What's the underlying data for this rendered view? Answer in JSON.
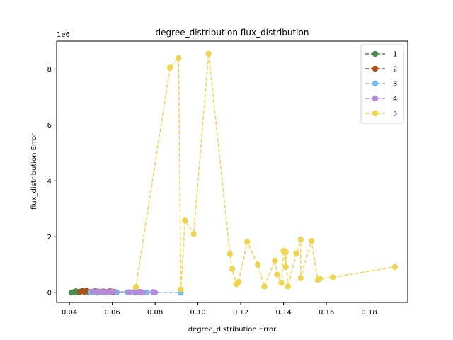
{
  "chart_data": {
    "type": "line",
    "title": "degree_distribution flux_distribution",
    "xlabel": "degree_distribution Error",
    "ylabel": "flux_distribution Error",
    "y_offset_label": "1e6",
    "xlim": [
      0.034,
      0.198
    ],
    "ylim": [
      -0.35,
      9.0
    ],
    "y_scale_factor": 1000000,
    "x_ticks": [
      0.04,
      0.06,
      0.08,
      0.1,
      0.12,
      0.14,
      0.16,
      0.18
    ],
    "x_tick_labels": [
      "0.04",
      "0.06",
      "0.08",
      "0.10",
      "0.12",
      "0.14",
      "0.16",
      "0.18"
    ],
    "y_ticks": [
      0,
      2,
      4,
      6,
      8
    ],
    "y_tick_labels": [
      "0",
      "2",
      "4",
      "6",
      "8"
    ],
    "legend_position": "top-right",
    "grid": false,
    "series": [
      {
        "name": "1",
        "color": "#4a8b50",
        "x": [
          0.041,
          0.042,
          0.043,
          0.044,
          0.045,
          0.047,
          0.049,
          0.051,
          0.053,
          0.055,
          0.057
        ],
        "y": [
          0.0,
          0.02,
          0.05,
          0.01,
          0.03,
          0.02,
          0.01,
          0.02,
          0.0,
          0.01,
          0.02
        ]
      },
      {
        "name": "2",
        "color": "#a9521b",
        "x": [
          0.045,
          0.046,
          0.047,
          0.048,
          0.05,
          0.052,
          0.054,
          0.056,
          0.058,
          0.059,
          0.06,
          0.061,
          0.062
        ],
        "y": [
          0.03,
          0.06,
          0.04,
          0.07,
          0.03,
          0.05,
          0.02,
          0.04,
          0.03,
          0.05,
          0.02,
          0.03,
          0.01
        ]
      },
      {
        "name": "3",
        "color": "#7ab8ee",
        "x": [
          0.05,
          0.052,
          0.055,
          0.058,
          0.062,
          0.067,
          0.07,
          0.073,
          0.076,
          0.092
        ],
        "y": [
          0.02,
          0.01,
          0.02,
          0.01,
          0.02,
          0.01,
          0.02,
          0.01,
          0.01,
          0.0
        ]
      },
      {
        "name": "4",
        "color": "#b58ad6",
        "x": [
          0.051,
          0.053,
          0.054,
          0.055,
          0.057,
          0.059,
          0.06,
          0.068,
          0.071,
          0.072,
          0.073,
          0.074,
          0.079,
          0.08
        ],
        "y": [
          0.03,
          0.05,
          0.02,
          0.04,
          0.03,
          0.02,
          0.04,
          0.02,
          0.01,
          0.02,
          0.03,
          0.01,
          0.02,
          0.01
        ]
      },
      {
        "name": "5",
        "color": "#efd452",
        "x": [
          0.071,
          0.087,
          0.091,
          0.092,
          0.094,
          0.098,
          0.105,
          0.115,
          0.116,
          0.118,
          0.119,
          0.123,
          0.128,
          0.131,
          0.136,
          0.137,
          0.139,
          0.14,
          0.141,
          0.141,
          0.142,
          0.146,
          0.148,
          0.148,
          0.153,
          0.156,
          0.157,
          0.163,
          0.192
        ],
        "y": [
          0.2,
          8.05,
          8.4,
          0.12,
          2.58,
          2.1,
          8.55,
          1.38,
          0.85,
          0.3,
          0.38,
          1.82,
          1.0,
          0.22,
          1.15,
          0.65,
          0.35,
          1.5,
          0.92,
          1.45,
          0.22,
          1.4,
          1.9,
          0.52,
          1.85,
          0.45,
          0.5,
          0.55,
          0.92
        ]
      }
    ]
  }
}
